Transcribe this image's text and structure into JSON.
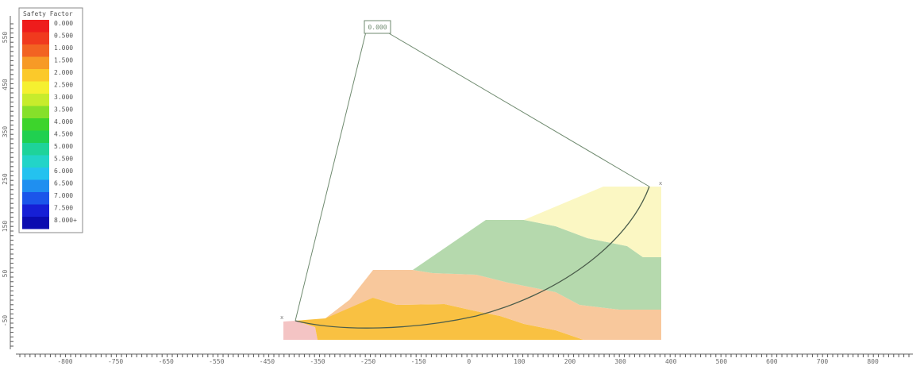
{
  "legend": {
    "title": "Safety Factor",
    "entries": [
      {
        "label": "0.000",
        "color": "#ee1c1c"
      },
      {
        "label": "0.500",
        "color": "#f03a1e"
      },
      {
        "label": "1.000",
        "color": "#f26322"
      },
      {
        "label": "1.500",
        "color": "#f79a26"
      },
      {
        "label": "2.000",
        "color": "#fbc92a"
      },
      {
        "label": "2.500",
        "color": "#f5f030"
      },
      {
        "label": "3.000",
        "color": "#c7ec2c"
      },
      {
        "label": "3.500",
        "color": "#86e02a"
      },
      {
        "label": "4.000",
        "color": "#3dd42c"
      },
      {
        "label": "4.500",
        "color": "#20d050"
      },
      {
        "label": "5.000",
        "color": "#1ed39a"
      },
      {
        "label": "5.500",
        "color": "#22d4c8"
      },
      {
        "label": "6.000",
        "color": "#24c2ef"
      },
      {
        "label": "6.500",
        "color": "#1f8ff0"
      },
      {
        "label": "7.000",
        "color": "#1b55ea"
      },
      {
        "label": "7.500",
        "color": "#161fd6"
      },
      {
        "label": "8.000+",
        "color": "#0b0bb0"
      }
    ]
  },
  "center_label": "0.000",
  "x_axis": {
    "ticks": [
      "-800",
      "-750",
      "-650",
      "-550",
      "-450",
      "-350",
      "-250",
      "-150",
      "0",
      "100",
      "200",
      "300",
      "400",
      "500",
      "600",
      "700",
      "800"
    ]
  },
  "y_axis": {
    "ticks": [
      "550",
      "450",
      "350",
      "250",
      "150",
      "50",
      "-50"
    ]
  },
  "materials": [
    {
      "name": "pink-base",
      "color": "#f4c4c4"
    },
    {
      "name": "orange-layer",
      "color": "#f9c142"
    },
    {
      "name": "peach-layer",
      "color": "#f8c89c"
    },
    {
      "name": "green-layer",
      "color": "#b5d9ad"
    },
    {
      "name": "yellow-layer",
      "color": "#fbf7c3"
    }
  ]
}
